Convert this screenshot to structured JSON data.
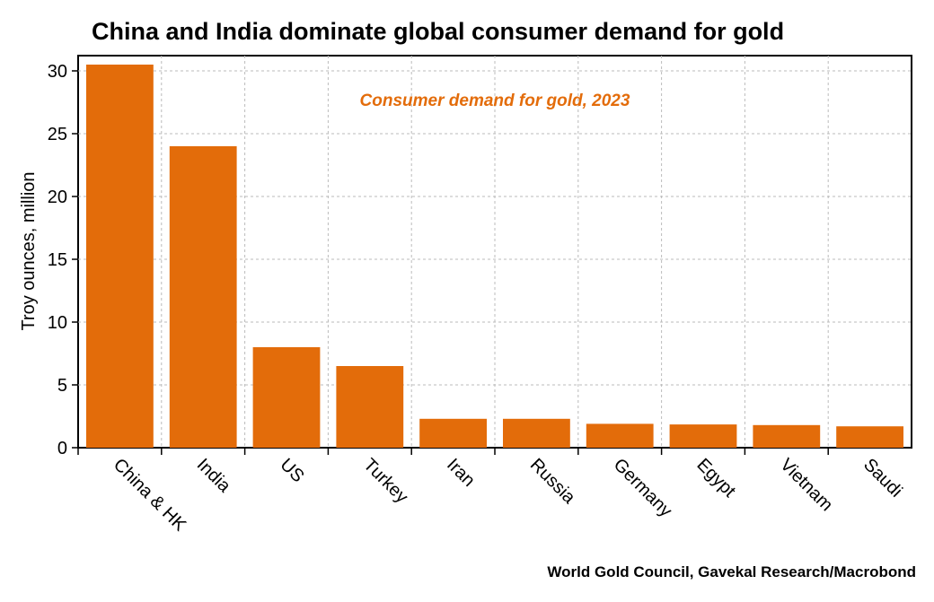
{
  "chart_data": {
    "type": "bar",
    "title": "China and India dominate global consumer demand for gold",
    "subtitle": "Consumer demand for gold, 2023",
    "xlabel": "",
    "ylabel": "Troy ounces, million",
    "categories": [
      "China & HK",
      "India",
      "US",
      "Turkey",
      "Iran",
      "Russia",
      "Germany",
      "Egypt",
      "Vietnam",
      "Saudi"
    ],
    "values": [
      30.5,
      24.0,
      8.0,
      6.5,
      2.3,
      2.3,
      1.9,
      1.85,
      1.8,
      1.7
    ],
    "ylim": [
      0,
      31.5
    ],
    "yticks": [
      0,
      5,
      10,
      15,
      20,
      25,
      30
    ],
    "grid": true,
    "bar_color": "#e36c0a",
    "source": "World Gold Council, Gavekal Research/Macrobond"
  }
}
